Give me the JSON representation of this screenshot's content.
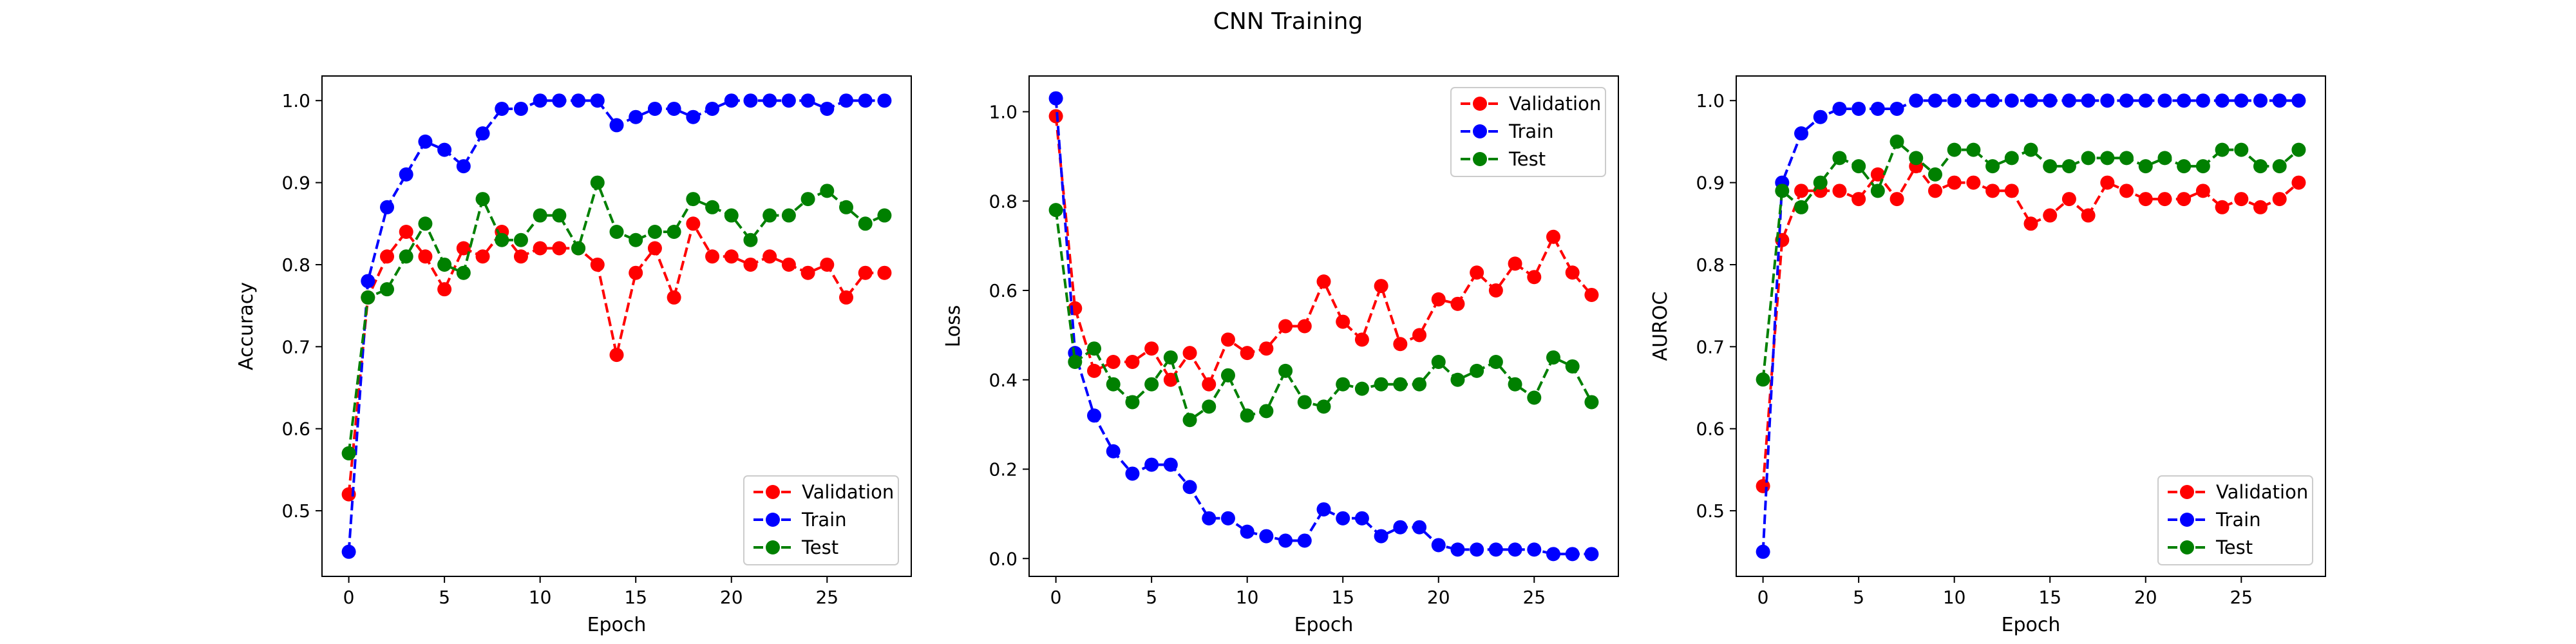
{
  "figure": {
    "title": "CNN Training"
  },
  "chart_data": [
    {
      "type": "line",
      "xlabel": "Epoch",
      "ylabel": "Accuracy",
      "xlim": [
        -1.4,
        29.4
      ],
      "ylim": [
        0.42,
        1.03
      ],
      "xticks": [
        0,
        5,
        10,
        15,
        20,
        25
      ],
      "yticks": [
        0.5,
        0.6,
        0.7,
        0.8,
        0.9,
        1.0
      ],
      "ytick_labels": [
        "0.5",
        "0.6",
        "0.7",
        "0.8",
        "0.9",
        "1.0"
      ],
      "grid": false,
      "legend_position": "lower-right",
      "x": [
        0,
        1,
        2,
        3,
        4,
        5,
        6,
        7,
        8,
        9,
        10,
        11,
        12,
        13,
        14,
        15,
        16,
        17,
        18,
        19,
        20,
        21,
        22,
        23,
        24,
        25,
        26,
        27,
        28
      ],
      "series": [
        {
          "name": "Validation",
          "color": "#ff0000",
          "values": [
            0.52,
            0.76,
            0.81,
            0.84,
            0.81,
            0.77,
            0.82,
            0.81,
            0.84,
            0.81,
            0.82,
            0.82,
            0.82,
            0.8,
            0.69,
            0.79,
            0.82,
            0.76,
            0.85,
            0.81,
            0.81,
            0.8,
            0.81,
            0.8,
            0.79,
            0.8,
            0.76,
            0.79,
            0.79
          ]
        },
        {
          "name": "Train",
          "color": "#0000ff",
          "values": [
            0.45,
            0.78,
            0.87,
            0.91,
            0.95,
            0.94,
            0.92,
            0.96,
            0.99,
            0.99,
            1.0,
            1.0,
            1.0,
            1.0,
            0.97,
            0.98,
            0.99,
            0.99,
            0.98,
            0.99,
            1.0,
            1.0,
            1.0,
            1.0,
            1.0,
            0.99,
            1.0,
            1.0,
            1.0
          ]
        },
        {
          "name": "Test",
          "color": "#008000",
          "values": [
            0.57,
            0.76,
            0.77,
            0.81,
            0.85,
            0.8,
            0.79,
            0.88,
            0.83,
            0.83,
            0.86,
            0.86,
            0.82,
            0.9,
            0.84,
            0.83,
            0.84,
            0.84,
            0.88,
            0.87,
            0.86,
            0.83,
            0.86,
            0.86,
            0.88,
            0.89,
            0.87,
            0.85,
            0.86
          ]
        }
      ]
    },
    {
      "type": "line",
      "xlabel": "Epoch",
      "ylabel": "Loss",
      "xlim": [
        -1.4,
        29.4
      ],
      "ylim": [
        -0.04,
        1.08
      ],
      "xticks": [
        0,
        5,
        10,
        15,
        20,
        25
      ],
      "yticks": [
        0.0,
        0.2,
        0.4,
        0.6,
        0.8,
        1.0
      ],
      "ytick_labels": [
        "0.0",
        "0.2",
        "0.4",
        "0.6",
        "0.8",
        "1.0"
      ],
      "grid": false,
      "legend_position": "upper-right",
      "x": [
        0,
        1,
        2,
        3,
        4,
        5,
        6,
        7,
        8,
        9,
        10,
        11,
        12,
        13,
        14,
        15,
        16,
        17,
        18,
        19,
        20,
        21,
        22,
        23,
        24,
        25,
        26,
        27,
        28
      ],
      "series": [
        {
          "name": "Validation",
          "color": "#ff0000",
          "values": [
            0.99,
            0.56,
            0.42,
            0.44,
            0.44,
            0.47,
            0.4,
            0.46,
            0.39,
            0.49,
            0.46,
            0.47,
            0.52,
            0.52,
            0.62,
            0.53,
            0.49,
            0.61,
            0.48,
            0.5,
            0.58,
            0.57,
            0.64,
            0.6,
            0.66,
            0.63,
            0.72,
            0.64,
            0.59
          ]
        },
        {
          "name": "Train",
          "color": "#0000ff",
          "values": [
            1.03,
            0.46,
            0.32,
            0.24,
            0.19,
            0.21,
            0.21,
            0.16,
            0.09,
            0.09,
            0.06,
            0.05,
            0.04,
            0.04,
            0.11,
            0.09,
            0.09,
            0.05,
            0.07,
            0.07,
            0.03,
            0.02,
            0.02,
            0.02,
            0.02,
            0.02,
            0.01,
            0.01,
            0.01
          ]
        },
        {
          "name": "Test",
          "color": "#008000",
          "values": [
            0.78,
            0.44,
            0.47,
            0.39,
            0.35,
            0.39,
            0.45,
            0.31,
            0.34,
            0.41,
            0.32,
            0.33,
            0.42,
            0.35,
            0.34,
            0.39,
            0.38,
            0.39,
            0.39,
            0.39,
            0.44,
            0.4,
            0.42,
            0.44,
            0.39,
            0.36,
            0.45,
            0.43,
            0.35
          ]
        }
      ]
    },
    {
      "type": "line",
      "xlabel": "Epoch",
      "ylabel": "AUROC",
      "xlim": [
        -1.4,
        29.4
      ],
      "ylim": [
        0.42,
        1.03
      ],
      "xticks": [
        0,
        5,
        10,
        15,
        20,
        25
      ],
      "yticks": [
        0.5,
        0.6,
        0.7,
        0.8,
        0.9,
        1.0
      ],
      "ytick_labels": [
        "0.5",
        "0.6",
        "0.7",
        "0.8",
        "0.9",
        "1.0"
      ],
      "grid": false,
      "legend_position": "lower-right",
      "x": [
        0,
        1,
        2,
        3,
        4,
        5,
        6,
        7,
        8,
        9,
        10,
        11,
        12,
        13,
        14,
        15,
        16,
        17,
        18,
        19,
        20,
        21,
        22,
        23,
        24,
        25,
        26,
        27,
        28
      ],
      "series": [
        {
          "name": "Validation",
          "color": "#ff0000",
          "values": [
            0.53,
            0.83,
            0.89,
            0.89,
            0.89,
            0.88,
            0.91,
            0.88,
            0.92,
            0.89,
            0.9,
            0.9,
            0.89,
            0.89,
            0.85,
            0.86,
            0.88,
            0.86,
            0.9,
            0.89,
            0.88,
            0.88,
            0.88,
            0.89,
            0.87,
            0.88,
            0.87,
            0.88,
            0.9
          ]
        },
        {
          "name": "Train",
          "color": "#0000ff",
          "values": [
            0.45,
            0.9,
            0.96,
            0.98,
            0.99,
            0.99,
            0.99,
            0.99,
            1.0,
            1.0,
            1.0,
            1.0,
            1.0,
            1.0,
            1.0,
            1.0,
            1.0,
            1.0,
            1.0,
            1.0,
            1.0,
            1.0,
            1.0,
            1.0,
            1.0,
            1.0,
            1.0,
            1.0,
            1.0
          ]
        },
        {
          "name": "Test",
          "color": "#008000",
          "values": [
            0.66,
            0.89,
            0.87,
            0.9,
            0.93,
            0.92,
            0.89,
            0.95,
            0.93,
            0.91,
            0.94,
            0.94,
            0.92,
            0.93,
            0.94,
            0.92,
            0.92,
            0.93,
            0.93,
            0.93,
            0.92,
            0.93,
            0.92,
            0.92,
            0.94,
            0.94,
            0.92,
            0.92,
            0.94
          ]
        }
      ]
    }
  ]
}
